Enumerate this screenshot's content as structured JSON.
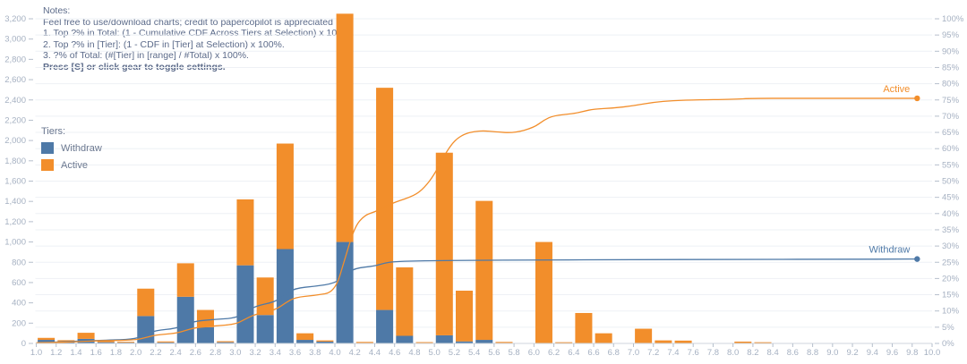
{
  "notes": {
    "title": "Notes:",
    "lines": [
      "Feel free to use/download charts; credit to papercopilot is appreciated",
      "1. Top ?% in Total: (1 - Cumulative CDF Across Tiers at Selection) x 100%.",
      "2. Top ?% in [Tier]: (1 - CDF in [Tier] at Selection) x 100%.",
      "3. ?% of Total: (#[Tier] in [range] / #Total) x 100%."
    ],
    "bold_line": "Press [S] or click gear to toggle settings."
  },
  "legend": {
    "title": "Tiers:",
    "items": [
      {
        "label": "Withdraw",
        "color": "#4e79a7"
      },
      {
        "label": "Active",
        "color": "#f28e2b"
      }
    ]
  },
  "colors": {
    "withdraw": "#4e79a7",
    "active": "#f28e2b",
    "tick_label": "#a6b1c2",
    "axis_line": "#cfd5dd",
    "tick_mark": "#b6bfcc",
    "gridline": "#eef1f5"
  },
  "chart_data": {
    "type": "bar",
    "stacked": true,
    "title": "",
    "xlabel": "",
    "ylabel_left": "",
    "ylabel_right": "",
    "grid": true,
    "axes": {
      "x": {
        "min": 1.0,
        "max": 10.0,
        "tick_step": 0.2
      },
      "y_left": {
        "min": 0,
        "max": 3200,
        "tick_step": 200
      },
      "y_right": {
        "min": 0,
        "max": 100,
        "tick_step": 5,
        "suffix": "%"
      }
    },
    "categories": [
      1.0,
      1.2,
      1.4,
      1.6,
      1.8,
      2.0,
      2.2,
      2.4,
      2.6,
      2.8,
      3.0,
      3.2,
      3.4,
      3.6,
      3.8,
      4.0,
      4.2,
      4.4,
      4.6,
      4.8,
      5.0,
      5.2,
      5.4,
      5.6,
      5.8,
      6.0,
      6.2,
      6.4,
      6.6,
      6.8,
      7.0,
      7.2,
      7.4,
      7.6,
      7.8,
      8.0,
      8.2,
      8.4,
      8.6,
      8.8,
      9.0,
      9.2,
      9.4,
      9.6,
      9.8
    ],
    "series": [
      {
        "name": "Withdraw",
        "color": "#4e79a7",
        "values": [
          35,
          20,
          45,
          12,
          8,
          270,
          10,
          460,
          160,
          12,
          770,
          280,
          930,
          35,
          18,
          1000,
          5,
          330,
          75,
          5,
          80,
          20,
          35,
          5,
          0,
          0,
          0,
          0,
          5,
          0,
          5,
          0,
          0,
          0,
          0,
          0,
          0,
          0,
          0,
          0,
          0,
          0,
          0,
          0,
          0
        ]
      },
      {
        "name": "Active",
        "color": "#f28e2b",
        "values": [
          20,
          12,
          60,
          10,
          8,
          270,
          10,
          330,
          170,
          10,
          650,
          370,
          1040,
          65,
          12,
          2250,
          10,
          2190,
          675,
          8,
          1800,
          500,
          1370,
          10,
          0,
          1000,
          12,
          300,
          95,
          0,
          140,
          30,
          28,
          0,
          0,
          18,
          12,
          0,
          0,
          0,
          0,
          0,
          0,
          0,
          0
        ]
      }
    ],
    "cdf_lines": [
      {
        "name": "Withdraw",
        "color": "#4e79a7",
        "end_label": "Withdraw",
        "end_value_pct": 26.0,
        "points": [
          [
            1.0,
            0.2
          ],
          [
            1.2,
            0.4
          ],
          [
            1.4,
            0.7
          ],
          [
            1.6,
            0.9
          ],
          [
            1.8,
            1.1
          ],
          [
            2.0,
            1.4
          ],
          [
            2.1,
            2.8
          ],
          [
            2.2,
            4.0
          ],
          [
            2.4,
            4.6
          ],
          [
            2.5,
            5.8
          ],
          [
            2.6,
            6.9
          ],
          [
            2.8,
            7.4
          ],
          [
            3.0,
            7.8
          ],
          [
            3.1,
            9.5
          ],
          [
            3.2,
            11.5
          ],
          [
            3.4,
            12.8
          ],
          [
            3.5,
            15.0
          ],
          [
            3.6,
            17.0
          ],
          [
            3.8,
            17.6
          ],
          [
            4.0,
            18.5
          ],
          [
            4.1,
            21.0
          ],
          [
            4.2,
            23.2
          ],
          [
            4.4,
            23.8
          ],
          [
            4.5,
            24.8
          ],
          [
            4.6,
            25.2
          ],
          [
            4.8,
            25.4
          ],
          [
            5.0,
            25.5
          ],
          [
            5.4,
            25.6
          ],
          [
            6.0,
            25.7
          ],
          [
            7.0,
            25.8
          ],
          [
            8.0,
            25.9
          ],
          [
            9.0,
            25.9
          ],
          [
            9.85,
            26.0
          ]
        ]
      },
      {
        "name": "Active",
        "color": "#f28e2b",
        "end_label": "Active",
        "end_value_pct": 75.5,
        "points": [
          [
            1.0,
            0.2
          ],
          [
            1.2,
            0.3
          ],
          [
            1.4,
            0.5
          ],
          [
            1.6,
            0.8
          ],
          [
            1.8,
            0.9
          ],
          [
            2.0,
            1.1
          ],
          [
            2.1,
            1.8
          ],
          [
            2.2,
            2.6
          ],
          [
            2.4,
            3.1
          ],
          [
            2.5,
            4.0
          ],
          [
            2.6,
            4.9
          ],
          [
            2.8,
            5.4
          ],
          [
            3.0,
            5.9
          ],
          [
            3.1,
            7.5
          ],
          [
            3.2,
            9.0
          ],
          [
            3.4,
            10.3
          ],
          [
            3.5,
            12.4
          ],
          [
            3.6,
            14.2
          ],
          [
            3.8,
            14.8
          ],
          [
            4.0,
            15.8
          ],
          [
            4.1,
            26.0
          ],
          [
            4.2,
            36.0
          ],
          [
            4.3,
            39.5
          ],
          [
            4.4,
            40.5
          ],
          [
            4.5,
            42.0
          ],
          [
            4.6,
            43.5
          ],
          [
            4.8,
            45.5
          ],
          [
            4.9,
            48.0
          ],
          [
            5.0,
            52.0
          ],
          [
            5.1,
            58.0
          ],
          [
            5.2,
            62.5
          ],
          [
            5.3,
            64.5
          ],
          [
            5.4,
            65.3
          ],
          [
            5.5,
            65.5
          ],
          [
            5.6,
            65.2
          ],
          [
            5.8,
            64.8
          ],
          [
            6.0,
            66.5
          ],
          [
            6.1,
            68.8
          ],
          [
            6.2,
            70.2
          ],
          [
            6.4,
            70.8
          ],
          [
            6.5,
            71.5
          ],
          [
            6.6,
            72.2
          ],
          [
            6.8,
            72.5
          ],
          [
            7.0,
            73.2
          ],
          [
            7.2,
            74.3
          ],
          [
            7.4,
            74.8
          ],
          [
            7.6,
            75.0
          ],
          [
            8.0,
            75.2
          ],
          [
            8.2,
            75.5
          ],
          [
            8.6,
            75.5
          ],
          [
            9.0,
            75.5
          ],
          [
            9.4,
            75.5
          ],
          [
            9.85,
            75.5
          ]
        ]
      }
    ]
  }
}
